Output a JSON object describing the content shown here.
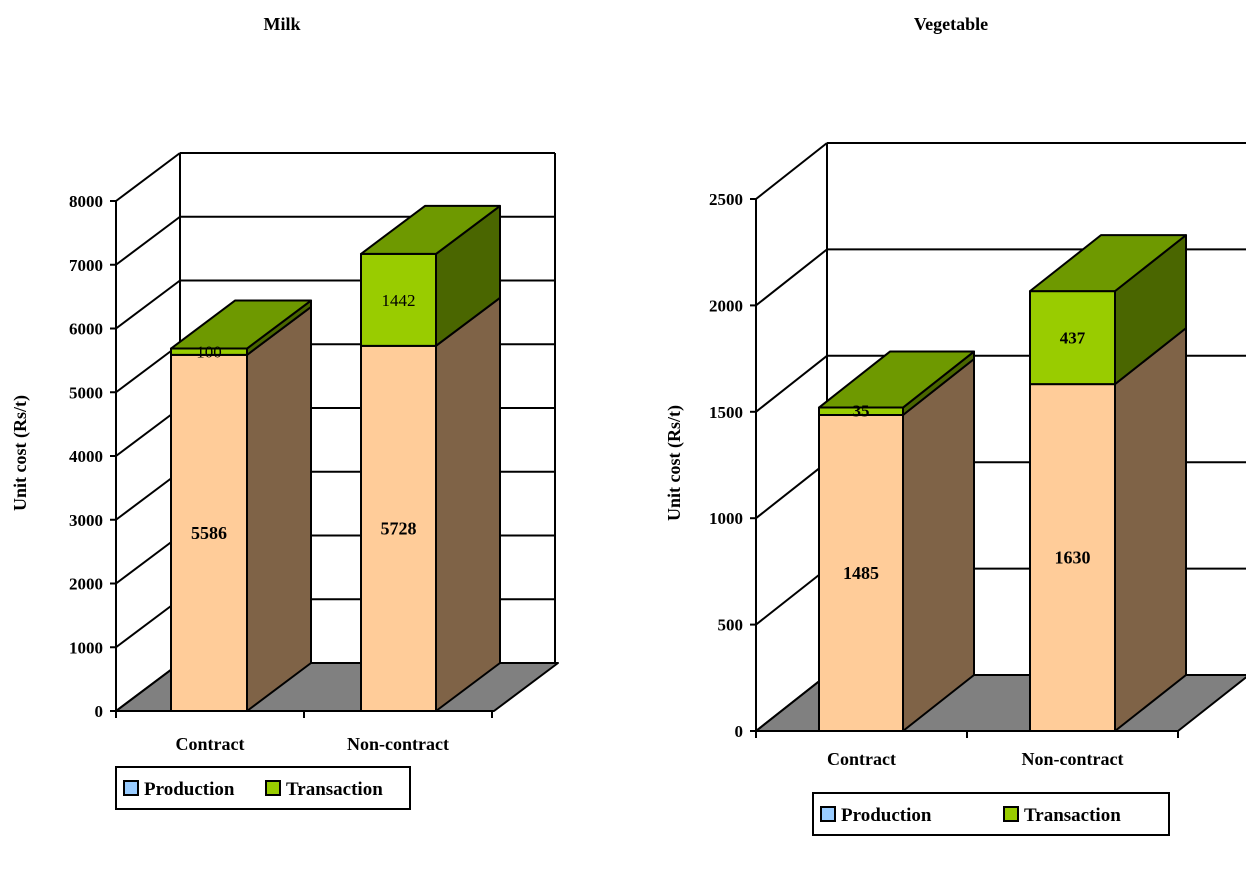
{
  "chart_data": [
    {
      "type": "bar",
      "stacked": true,
      "three_d": true,
      "title": "Milk",
      "ylabel": "Unit cost (Rs/t)",
      "xlabel": "",
      "categories": [
        "Contract",
        "Non-contract"
      ],
      "series": [
        {
          "name": "Production",
          "values": [
            5586,
            5728
          ]
        },
        {
          "name": "Transaction",
          "values": [
            100,
            1442
          ]
        }
      ],
      "data_labels": [
        [
          "5586",
          "5728"
        ],
        [
          "100",
          "1442"
        ]
      ],
      "ylim": [
        0,
        8000
      ],
      "yticks": [
        0,
        1000,
        2000,
        3000,
        4000,
        5000,
        6000,
        7000,
        8000
      ],
      "ytick_labels": [
        "0",
        "1000",
        "2000",
        "3000",
        "4000",
        "5000",
        "6000",
        "7000",
        "8000"
      ],
      "grid": true,
      "legend_position": "bottom"
    },
    {
      "type": "bar",
      "stacked": true,
      "three_d": true,
      "title": "Vegetable",
      "ylabel": "Unit cost (Rs/t)",
      "xlabel": "",
      "categories": [
        "Contract",
        "Non-contract"
      ],
      "series": [
        {
          "name": "Production",
          "values": [
            1485,
            1630
          ]
        },
        {
          "name": "Transaction",
          "values": [
            35,
            437
          ]
        }
      ],
      "data_labels": [
        [
          "1485",
          "1630"
        ],
        [
          "35",
          "437"
        ]
      ],
      "ylim": [
        0,
        2500
      ],
      "yticks": [
        0,
        500,
        1000,
        1500,
        2000,
        2500
      ],
      "ytick_labels": [
        "0",
        "500",
        "1000",
        "1500",
        "2000",
        "2500"
      ],
      "grid": true,
      "legend_position": "bottom"
    }
  ],
  "colors": {
    "production_front": "#FFCC99",
    "production_side": "#7F6347",
    "transaction_front": "#99CC00",
    "transaction_top": "#6E9900",
    "transaction_side": "#4A6600",
    "floor": "#808080",
    "legend_production": "#99CCFF",
    "legend_transaction": "#99CC00"
  }
}
